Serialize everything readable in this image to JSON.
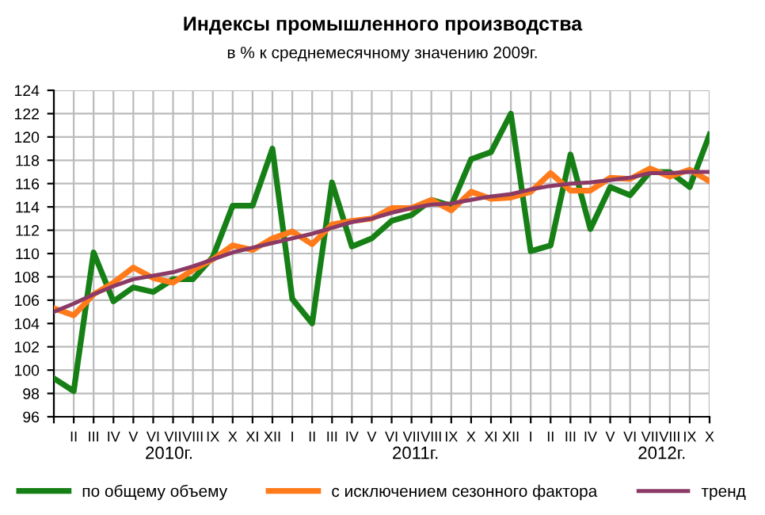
{
  "chart_data": {
    "type": "line",
    "title": "Индексы промышленного производства",
    "subtitle": "в % к среднемесячному значению 2009г.",
    "categories": [
      null,
      "II",
      "III",
      "IV",
      "V",
      "VI",
      "VII",
      "VIII",
      "IX",
      "X",
      "XI",
      "XII",
      "I",
      "II",
      "III",
      "IV",
      "V",
      "VI",
      "VII",
      "VIII",
      "IX",
      "X",
      "XI",
      "XII",
      "I",
      "II",
      "III",
      "IV",
      "V",
      "VI",
      "VII",
      "VIII",
      "IX",
      "X"
    ],
    "series": [
      {
        "name": "по общему объему",
        "color": "#168016",
        "values": [
          99.3,
          98.2,
          110.1,
          105.9,
          107.1,
          106.7,
          107.8,
          107.8,
          109.7,
          114.1,
          114.1,
          119.0,
          106.1,
          104.0,
          116.1,
          110.6,
          111.3,
          112.8,
          113.3,
          114.6,
          114.1,
          118.1,
          118.7,
          122.0,
          110.2,
          110.7,
          118.5,
          112.1,
          115.7,
          115.0,
          117.0,
          117.0,
          115.7,
          120.2
        ]
      },
      {
        "name": "с исключением сезонного фактора",
        "color": "#ff7a1a",
        "values": [
          105.3,
          104.7,
          106.5,
          107.5,
          108.8,
          107.9,
          107.5,
          108.6,
          109.5,
          110.7,
          110.3,
          111.3,
          111.9,
          110.8,
          112.5,
          112.8,
          113.0,
          113.9,
          113.9,
          114.6,
          113.7,
          115.3,
          114.7,
          114.8,
          115.3,
          116.9,
          115.4,
          115.4,
          116.5,
          116.4,
          117.3,
          116.6,
          117.2,
          116.2
        ]
      },
      {
        "name": "тренд",
        "color": "#8b3a66",
        "values": [
          105.0,
          105.7,
          106.5,
          107.2,
          107.8,
          108.1,
          108.4,
          108.9,
          109.5,
          110.1,
          110.5,
          110.9,
          111.3,
          111.7,
          112.2,
          112.7,
          113.0,
          113.5,
          113.9,
          114.2,
          114.3,
          114.6,
          114.9,
          115.1,
          115.5,
          115.8,
          116.0,
          116.1,
          116.3,
          116.5,
          116.9,
          116.9,
          117.0,
          117.0
        ]
      }
    ],
    "annotations": [
      "2010г.",
      "2011г.",
      "2012г."
    ],
    "ylim": [
      96,
      124
    ],
    "yticks": [
      96,
      98,
      100,
      102,
      104,
      106,
      108,
      110,
      112,
      114,
      116,
      118,
      120,
      122,
      124
    ],
    "grid": true,
    "legend": "bottom",
    "marker": "none",
    "line_style": "solid"
  }
}
